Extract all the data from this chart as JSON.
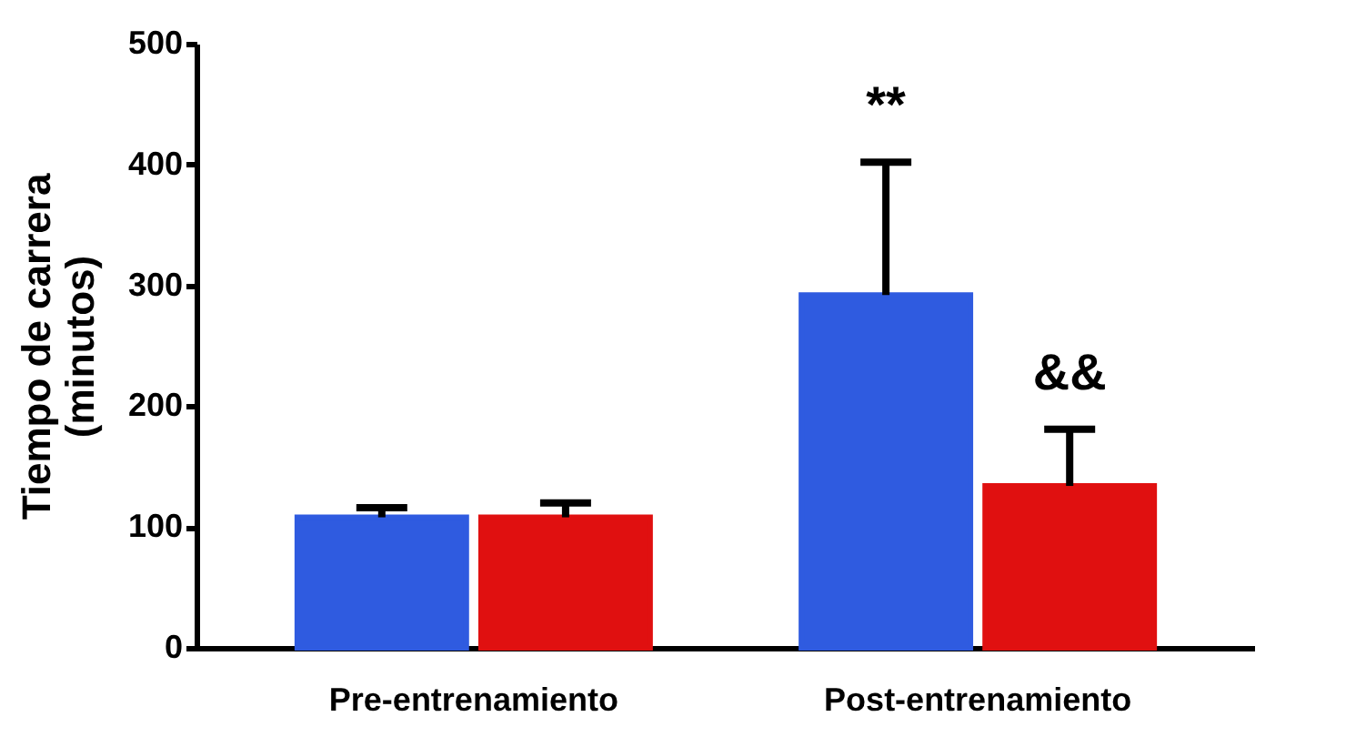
{
  "chart_data": {
    "type": "bar",
    "ylabel": "Tiempo de carrera (minutos)",
    "categories": [
      "Pre-entrenamiento",
      "Post-entrenamiento"
    ],
    "series": [
      {
        "color": "#2f5be0",
        "values": [
          108,
          292
        ],
        "errors": [
          [
            108,
            116
          ],
          [
            292,
            402
          ]
        ]
      },
      {
        "color": "#e01010",
        "values": [
          108,
          134
        ],
        "errors": [
          [
            108,
            120
          ],
          [
            134,
            181
          ]
        ]
      }
    ],
    "ylim": [
      0,
      500
    ],
    "yticks": [
      0,
      100,
      200,
      300,
      400,
      500
    ],
    "grid": false,
    "legend": false,
    "annotations": [
      "**",
      {
        "text": "&&",
        "x": "Post-entrenamiento",
        "y": 181
      }
    ]
  }
}
